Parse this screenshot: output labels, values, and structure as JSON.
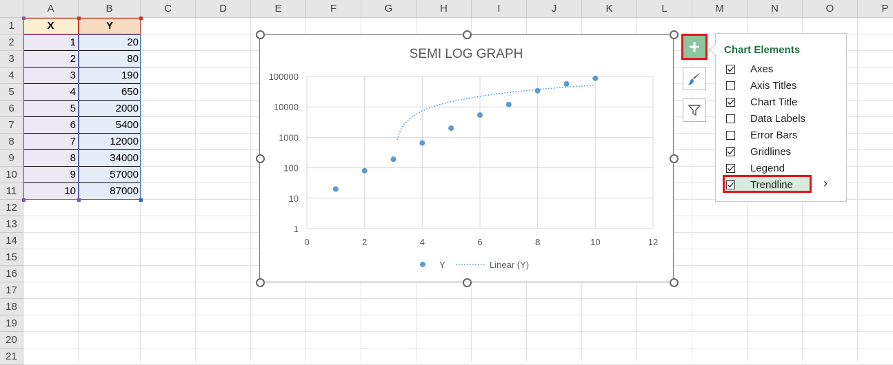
{
  "sheet": {
    "columns": [
      "A",
      "B",
      "C",
      "D",
      "E",
      "F",
      "G",
      "H",
      "I",
      "J",
      "K",
      "L",
      "M",
      "N",
      "O",
      "P"
    ],
    "rows": [
      "1",
      "2",
      "3",
      "4",
      "5",
      "6",
      "7",
      "8",
      "9",
      "10",
      "11",
      "12",
      "13",
      "14",
      "15",
      "16",
      "17",
      "18",
      "19",
      "20",
      "21"
    ],
    "table": {
      "header_x": "X",
      "header_y": "Y",
      "rows": [
        {
          "x": "1",
          "y": "20"
        },
        {
          "x": "2",
          "y": "80"
        },
        {
          "x": "3",
          "y": "190"
        },
        {
          "x": "4",
          "y": "650"
        },
        {
          "x": "5",
          "y": "2000"
        },
        {
          "x": "6",
          "y": "5400"
        },
        {
          "x": "7",
          "y": "12000"
        },
        {
          "x": "8",
          "y": "34000"
        },
        {
          "x": "9",
          "y": "57000"
        },
        {
          "x": "10",
          "y": "87000"
        }
      ]
    }
  },
  "chart_data": {
    "type": "scatter",
    "title": "SEMI LOG GRAPH",
    "xlabel": "",
    "ylabel": "",
    "y_scale": "log",
    "xlim": [
      0,
      12
    ],
    "ylim": [
      1,
      100000
    ],
    "x_ticks": [
      "0",
      "2",
      "4",
      "6",
      "8",
      "10",
      "12"
    ],
    "y_ticks": [
      "1",
      "10",
      "100",
      "1000",
      "10000",
      "100000"
    ],
    "grid": true,
    "legend": "bottom",
    "series": [
      {
        "name": "Y",
        "x": [
          1,
          2,
          3,
          4,
          5,
          6,
          7,
          8,
          9,
          10
        ],
        "y": [
          20,
          80,
          190,
          650,
          2000,
          5400,
          12000,
          34000,
          57000,
          87000
        ],
        "color": "#5b9bd5",
        "style": "markers"
      }
    ],
    "trendline": {
      "name": "Linear (Y)",
      "style": "dotted",
      "color": "#5b9bd5",
      "slope": 7460.6,
      "intercept": -22520,
      "x_range": [
        3.13,
        10
      ]
    }
  },
  "chart_elements_panel": {
    "title": "Chart Elements",
    "items": [
      {
        "label": "Axes",
        "checked": true
      },
      {
        "label": "Axis Titles",
        "checked": false
      },
      {
        "label": "Chart Title",
        "checked": true
      },
      {
        "label": "Data Labels",
        "checked": false
      },
      {
        "label": "Error Bars",
        "checked": false
      },
      {
        "label": "Gridlines",
        "checked": true
      },
      {
        "label": "Legend",
        "checked": true
      },
      {
        "label": "Trendline",
        "checked": true
      }
    ],
    "submenu_arrow": "›"
  },
  "side_buttons": {
    "add_icon": "plus-icon",
    "style_icon": "brush-icon",
    "filter_icon": "filter-icon"
  },
  "colors": {
    "accent_green": "#217346",
    "highlight_red": "#e8141c",
    "series_blue": "#5b9bd5"
  }
}
